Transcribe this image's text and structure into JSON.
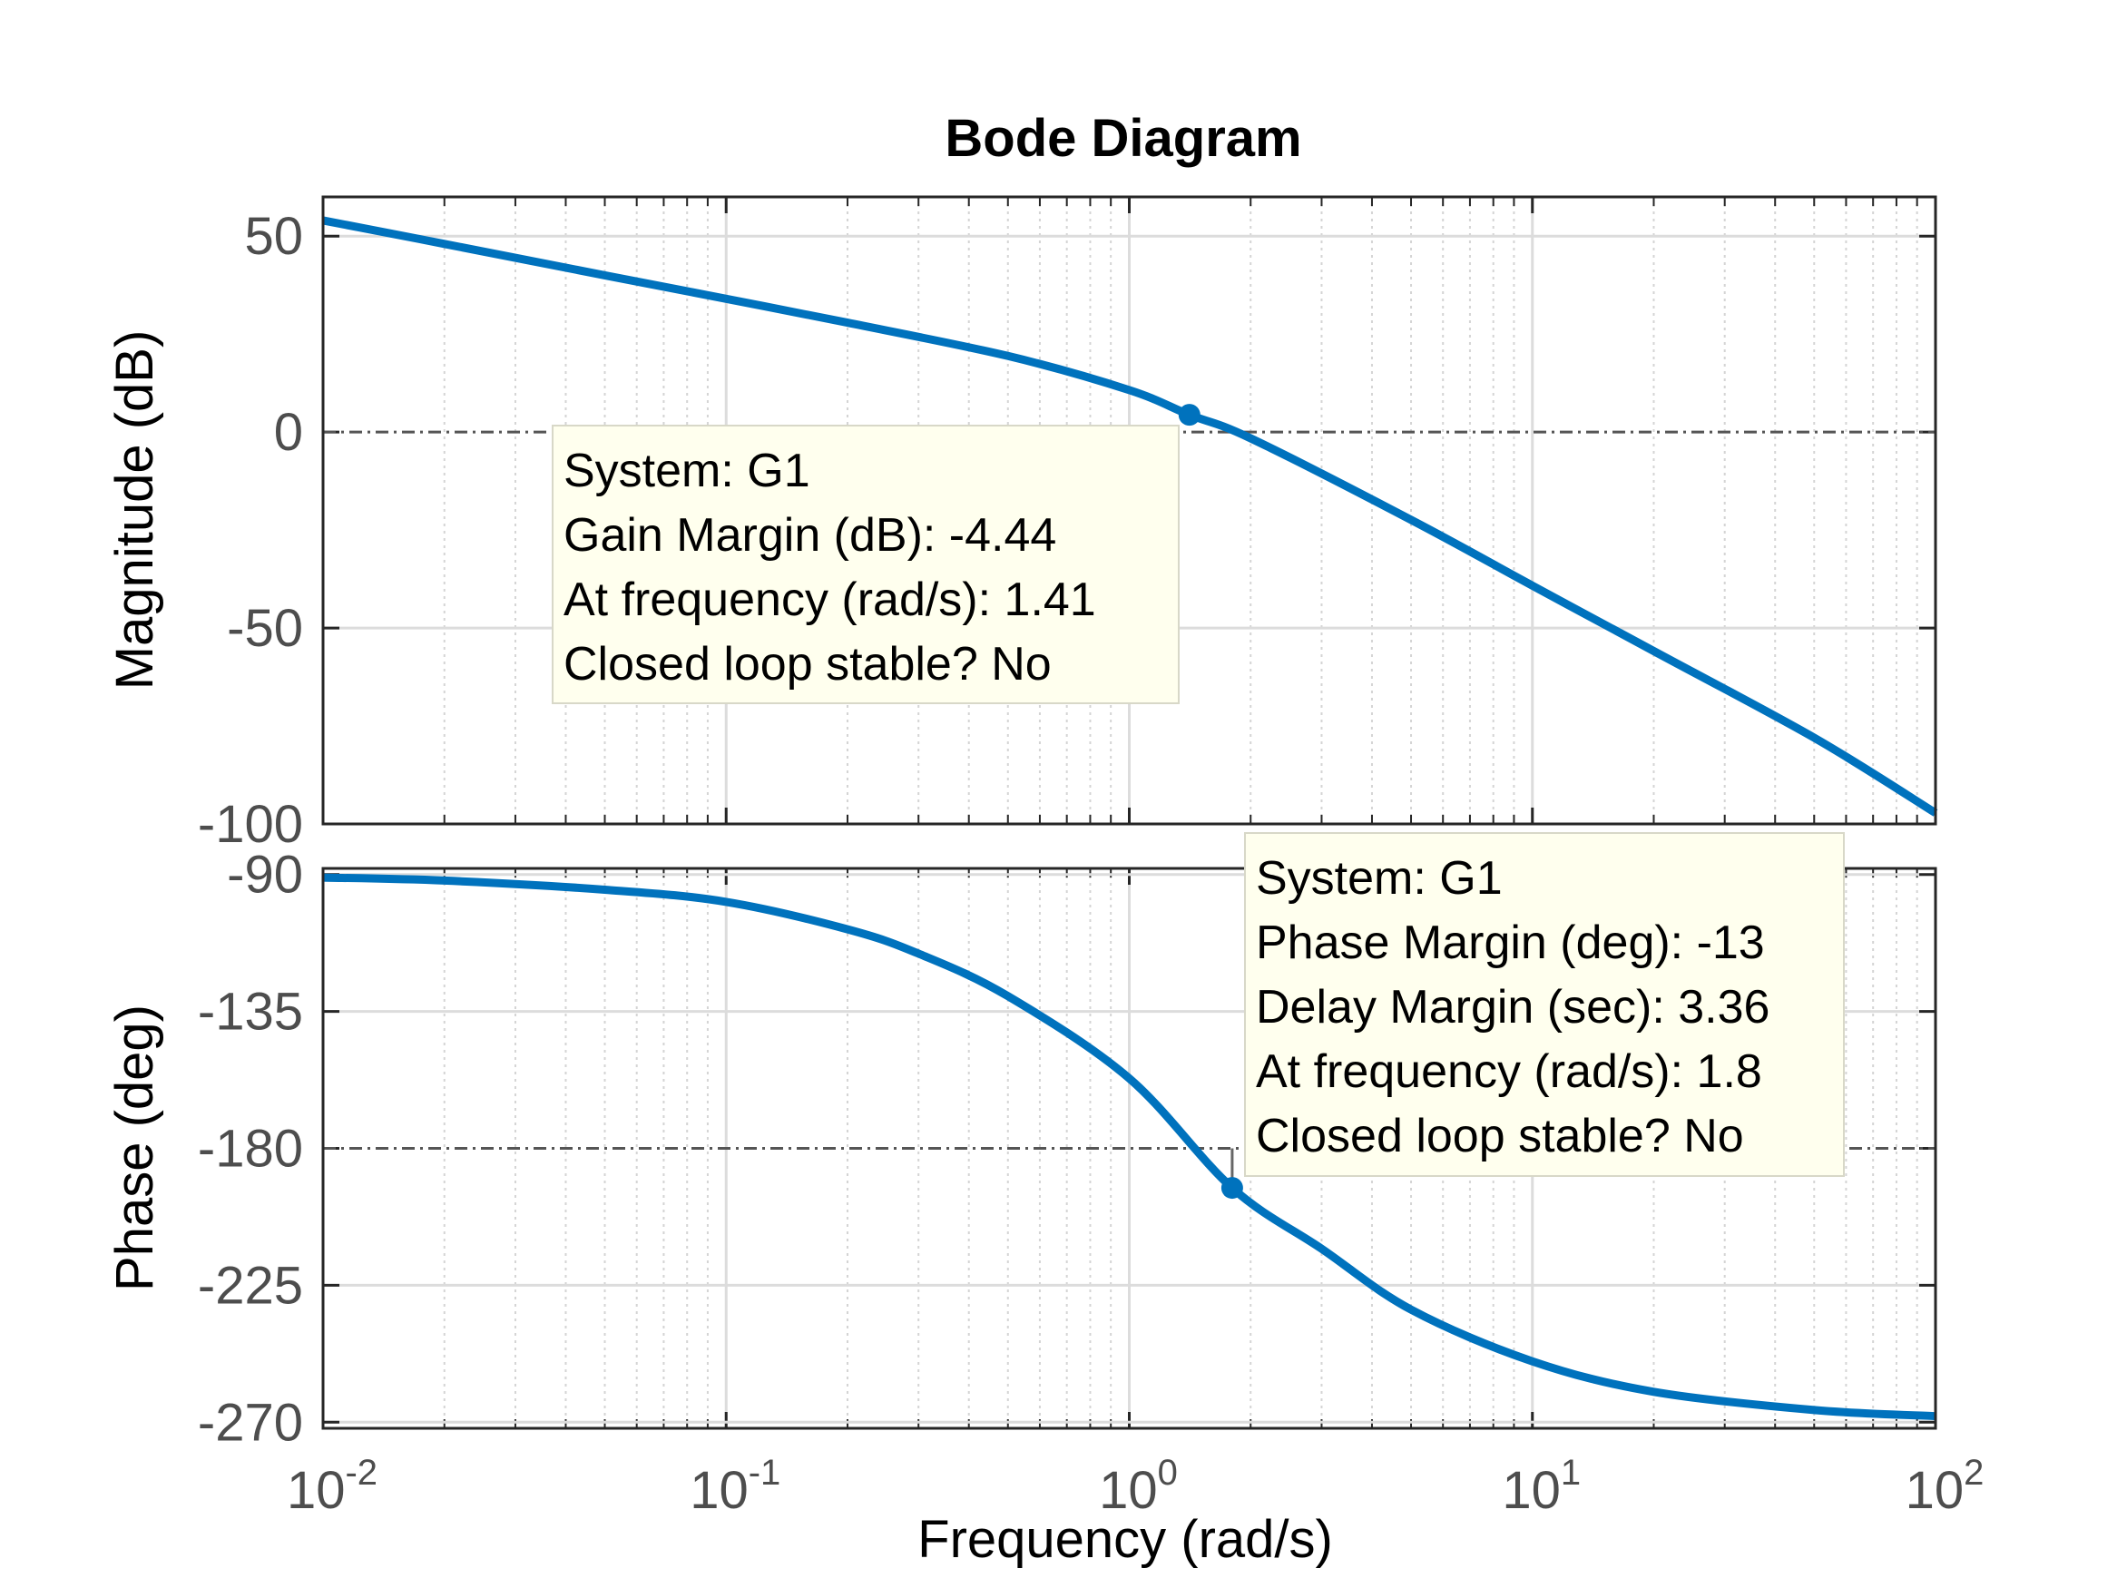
{
  "chart_data": [
    {
      "type": "line",
      "title": "Bode Diagram",
      "ylabel": "Magnitude (dB)",
      "xlabel": "Frequency  (rad/s)",
      "xscale": "log",
      "xlim": [
        0.01,
        100
      ],
      "ylim": [
        -100,
        60
      ],
      "yticks": [
        {
          "value": 50,
          "label": "50"
        },
        {
          "value": 0,
          "label": "0"
        },
        {
          "value": -50,
          "label": "-50"
        },
        {
          "value": -100,
          "label": "-100"
        }
      ],
      "grid": true,
      "reference_line": 0,
      "series": [
        {
          "color": "#0072BD",
          "x": [
            0.01,
            0.02,
            0.05,
            0.1,
            0.2,
            0.5,
            1,
            1.41,
            2,
            5,
            10,
            20,
            50,
            100
          ],
          "y": [
            54.0,
            48.0,
            40.0,
            34.0,
            27.9,
            19.4,
            10.7,
            4.4,
            -1.6,
            -22.4,
            -39.2,
            -55.9,
            -78.0,
            -97.2
          ]
        }
      ],
      "marker": {
        "x": 1.41,
        "y": 4.4
      },
      "datatip": {
        "lines": [
          "System: G1",
          "Gain Margin (dB): -4.44",
          "At frequency (rad/s): 1.41",
          "Closed loop stable? No"
        ]
      }
    },
    {
      "type": "line",
      "ylabel": "Phase (deg)",
      "xscale": "log",
      "xlim": [
        0.01,
        100
      ],
      "ylim": [
        -272,
        -88
      ],
      "yticks": [
        {
          "value": -90,
          "label": "-90"
        },
        {
          "value": -135,
          "label": "-135"
        },
        {
          "value": -180,
          "label": "-180"
        },
        {
          "value": -225,
          "label": "-225"
        },
        {
          "value": -270,
          "label": "-270"
        }
      ],
      "xticks": [
        {
          "value": 0.01,
          "base": "10",
          "exp": "-2"
        },
        {
          "value": 0.1,
          "base": "10",
          "exp": "-1"
        },
        {
          "value": 1,
          "base": "10",
          "exp": "0"
        },
        {
          "value": 10,
          "base": "10",
          "exp": "1"
        },
        {
          "value": 100,
          "base": "10",
          "exp": "2"
        }
      ],
      "grid": true,
      "reference_line": -180,
      "series": [
        {
          "color": "#0072BD",
          "x": [
            0.01,
            0.02,
            0.05,
            0.1,
            0.2,
            0.3,
            0.5,
            1,
            1.8,
            3,
            5,
            10,
            20,
            50,
            100
          ],
          "y": [
            -91.0,
            -92.0,
            -95.0,
            -99.0,
            -108.0,
            -116.0,
            -130.0,
            -157.0,
            -193.0,
            -213.0,
            -233.0,
            -250.0,
            -260.0,
            -266.0,
            -268.0
          ]
        }
      ],
      "marker": {
        "x": 1.8,
        "y": -193
      },
      "datatip": {
        "lines": [
          "System: G1",
          "Phase Margin (deg): -13",
          "Delay Margin (sec): 3.36",
          "At frequency (rad/s): 1.8",
          "Closed loop stable? No"
        ]
      }
    }
  ]
}
